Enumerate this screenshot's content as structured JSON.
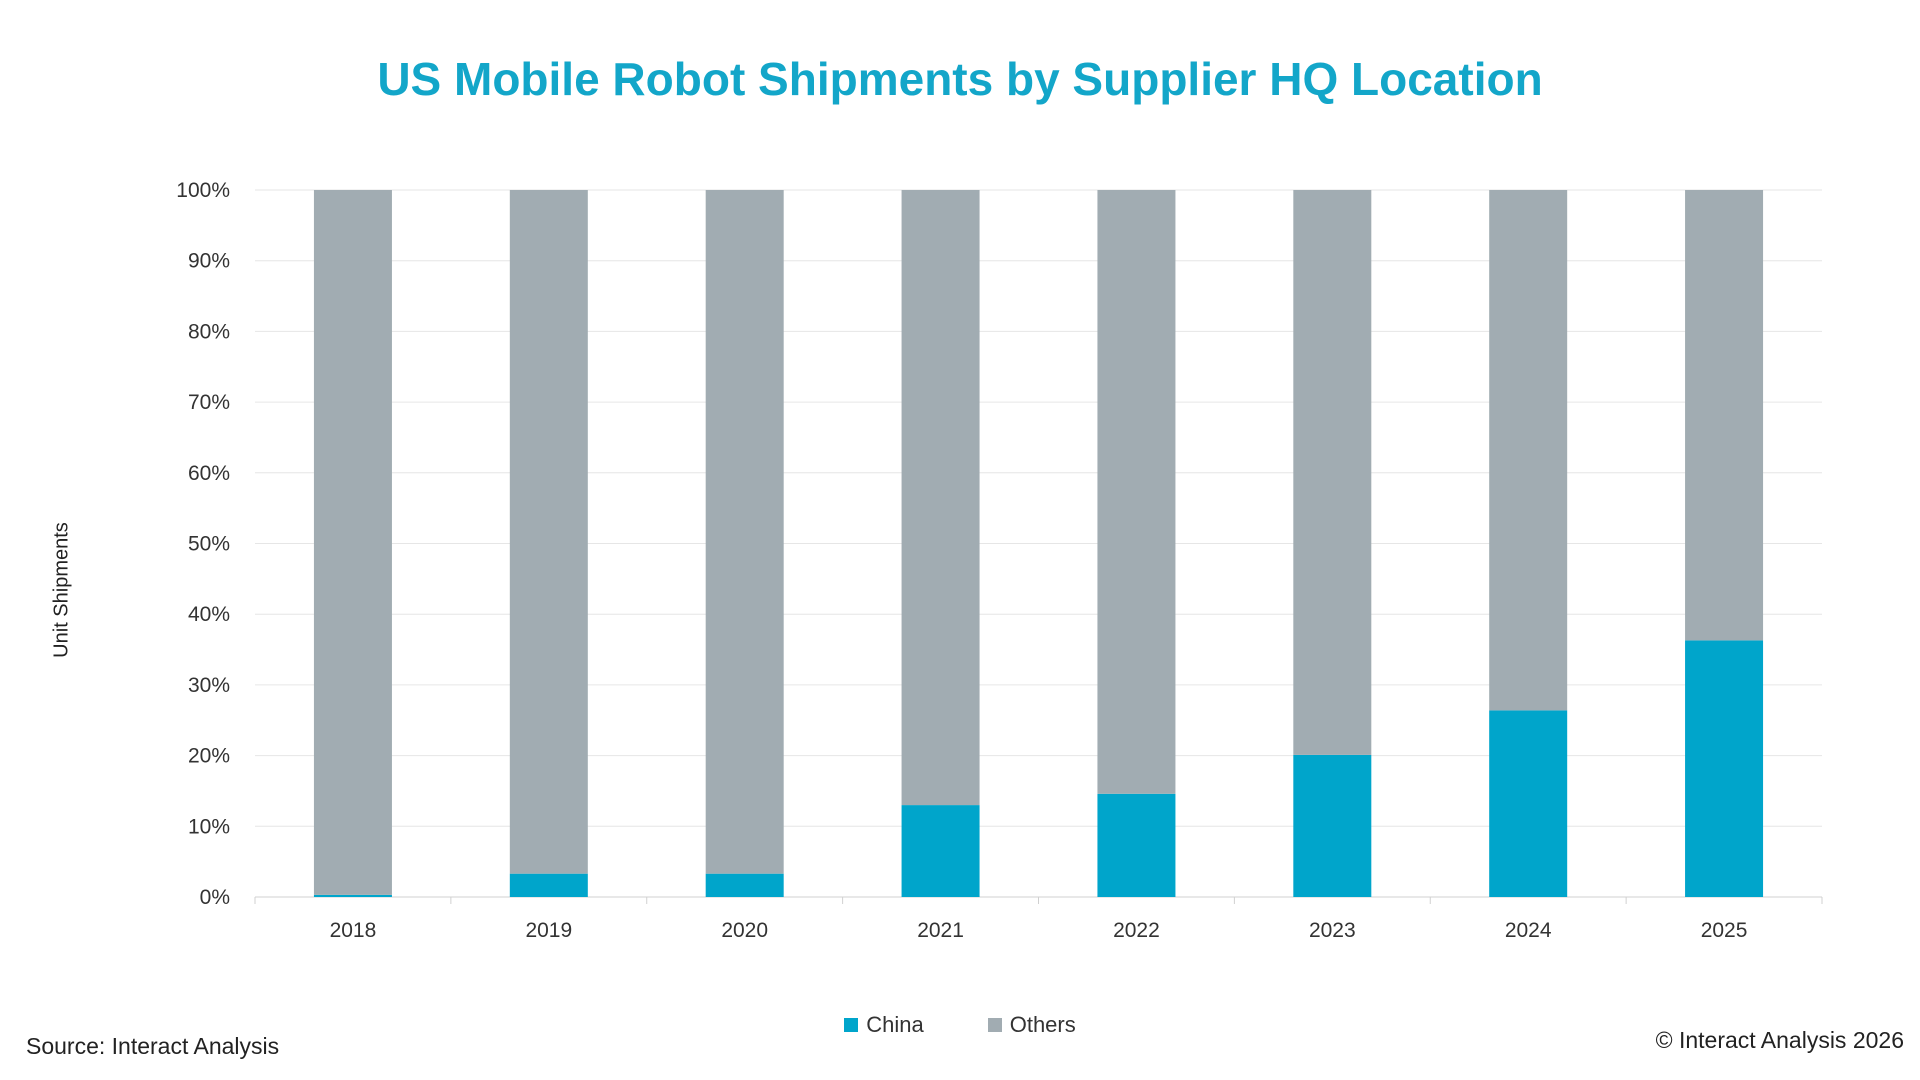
{
  "chart_data": {
    "type": "bar",
    "stacked": true,
    "title": "US Mobile Robot Shipments by Supplier HQ Location",
    "xlabel": "",
    "ylabel": "Unit Shipments",
    "categories": [
      "2018",
      "2019",
      "2020",
      "2021",
      "2022",
      "2023",
      "2024",
      "2025"
    ],
    "yticks": [
      "0%",
      "10%",
      "20%",
      "30%",
      "40%",
      "50%",
      "60%",
      "70%",
      "80%",
      "90%",
      "100%"
    ],
    "ylim": [
      0,
      100
    ],
    "grid": true,
    "legend_position": "bottom",
    "series": [
      {
        "name": "China",
        "color": "#00a5cb",
        "values": [
          0.3,
          3.3,
          3.3,
          13,
          14.6,
          20.1,
          26.4,
          36.3
        ]
      },
      {
        "name": "Others",
        "color": "#a1acb2",
        "values": [
          99.7,
          96.7,
          96.7,
          87,
          85.4,
          79.9,
          73.6,
          63.7
        ]
      }
    ]
  },
  "footer": {
    "source": "Source: Interact Analysis",
    "copyright": "© Interact Analysis 2026"
  }
}
